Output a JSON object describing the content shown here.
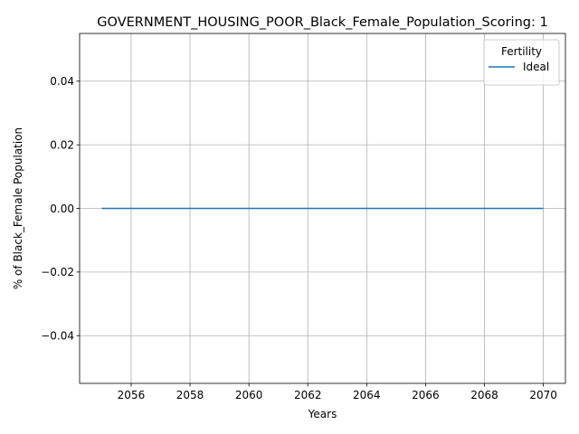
{
  "chart_data": {
    "type": "line",
    "title": "GOVERNMENT_HOUSING_POOR_Black_Female_Population_Scoring: 1",
    "xlabel": "Years",
    "ylabel": "% of Black_Female Population",
    "xlim": [
      2054.25,
      2070.75
    ],
    "ylim": [
      -0.055,
      0.055
    ],
    "x_ticks": [
      2056,
      2058,
      2060,
      2062,
      2064,
      2066,
      2068,
      2070
    ],
    "y_ticks": [
      -0.04,
      -0.02,
      0.0,
      0.02,
      0.04
    ],
    "y_tick_labels": [
      "−0.04",
      "−0.02",
      "0.00",
      "0.02",
      "0.04"
    ],
    "grid": true,
    "legend": {
      "title": "Fertility",
      "position": "top-right"
    },
    "series": [
      {
        "name": "Ideal",
        "color": "#1f77b4",
        "x": [
          2055,
          2056,
          2057,
          2058,
          2059,
          2060,
          2061,
          2062,
          2063,
          2064,
          2065,
          2066,
          2067,
          2068,
          2069,
          2070
        ],
        "values": [
          0,
          0,
          0,
          0,
          0,
          0,
          0,
          0,
          0,
          0,
          0,
          0,
          0,
          0,
          0,
          0
        ]
      }
    ]
  }
}
